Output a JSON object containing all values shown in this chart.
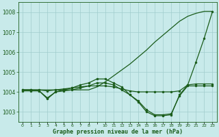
{
  "bg_color": "#c8eaea",
  "grid_color": "#a0cccc",
  "line_color": "#1a5c1a",
  "marker_color": "#1a5c1a",
  "title": "Graphe pression niveau de la mer (hPa)",
  "title_color": "#1a5c1a",
  "ylim": [
    1002.5,
    1008.5
  ],
  "yticks": [
    1003,
    1004,
    1005,
    1006,
    1007,
    1008
  ],
  "line1_x": [
    0,
    1,
    2,
    3,
    4,
    5,
    6,
    7,
    8,
    9,
    10,
    11,
    12,
    13,
    14,
    15,
    16,
    17,
    18,
    19,
    20,
    21,
    22,
    23
  ],
  "line1_y": [
    1004.1,
    1004.1,
    1004.05,
    1003.65,
    1004.0,
    1004.1,
    1004.2,
    1004.35,
    1004.45,
    1004.65,
    1004.65,
    1004.45,
    1004.25,
    1003.85,
    1003.5,
    1003.0,
    1002.8,
    1002.8,
    1002.85,
    1003.85,
    1004.35,
    1005.5,
    1006.7,
    1008.05
  ],
  "line2_x": [
    0,
    1,
    2,
    3,
    4,
    5,
    6,
    7,
    8,
    9,
    10,
    11,
    12,
    13,
    14,
    15,
    16,
    17,
    18,
    19,
    20,
    21,
    22,
    23
  ],
  "line2_y": [
    1004.1,
    1004.1,
    1004.1,
    1004.05,
    1004.1,
    1004.15,
    1004.2,
    1004.25,
    1004.3,
    1004.3,
    1004.3,
    1004.25,
    1004.15,
    1004.05,
    1004.0,
    1004.0,
    1004.0,
    1004.0,
    1004.0,
    1004.05,
    1004.35,
    1004.4,
    1004.4,
    1004.4
  ],
  "line3_x": [
    0,
    1,
    2,
    3,
    4,
    5,
    6,
    7,
    8,
    9,
    10,
    11,
    12,
    13,
    14,
    15,
    16,
    17,
    18,
    19,
    20,
    21,
    22,
    23
  ],
  "line3_y": [
    1004.05,
    1004.05,
    1004.05,
    1003.7,
    1004.0,
    1004.05,
    1004.1,
    1004.2,
    1004.3,
    1004.45,
    1004.45,
    1004.35,
    1004.1,
    1003.85,
    1003.55,
    1003.1,
    1002.85,
    1002.85,
    1002.9,
    1003.8,
    1004.3,
    1004.3,
    1004.3,
    1004.3
  ],
  "line4_x": [
    0,
    1,
    2,
    3,
    4,
    5,
    6,
    7,
    8,
    9,
    10,
    11,
    12,
    13,
    14,
    15,
    16,
    17,
    18,
    19,
    20,
    21,
    22,
    23
  ],
  "line4_y": [
    1004.1,
    1004.1,
    1004.1,
    1004.1,
    1004.1,
    1004.1,
    1004.1,
    1004.1,
    1004.1,
    1004.25,
    1004.5,
    1004.8,
    1005.1,
    1005.4,
    1005.75,
    1006.1,
    1006.5,
    1006.85,
    1007.2,
    1007.55,
    1007.8,
    1007.95,
    1008.05,
    1008.05
  ],
  "xtick_labels": [
    "0",
    "1",
    "2",
    "3",
    "4",
    "5",
    "6",
    "7",
    "8",
    "",
    "10",
    "11",
    "12",
    "13",
    "14",
    "15",
    "16",
    "17",
    "18",
    "19",
    "20",
    "21",
    "22",
    "23"
  ],
  "xlim": [
    -0.5,
    23.5
  ]
}
